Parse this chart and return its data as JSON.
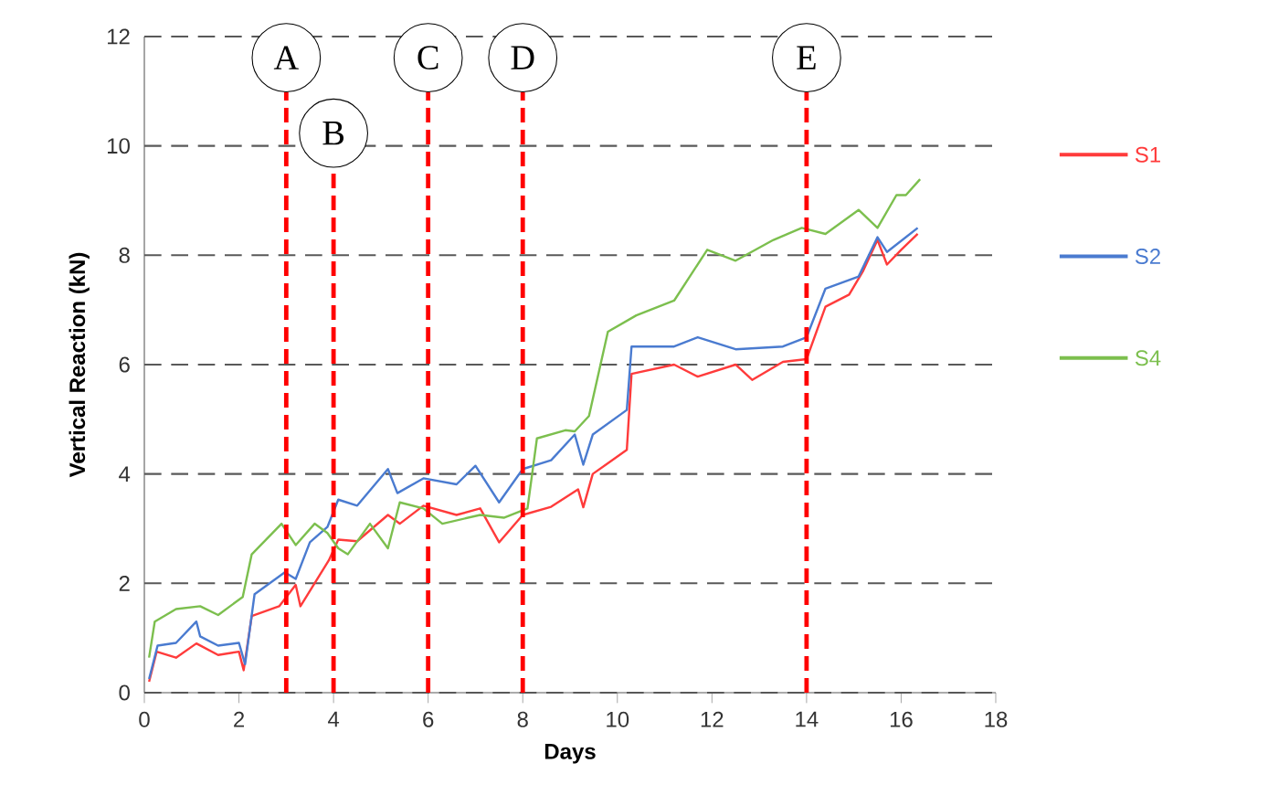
{
  "chart_data": {
    "type": "line",
    "xlabel": "Days",
    "ylabel": "Vertical Reaction (kN)",
    "xlim": [
      0,
      18
    ],
    "xticks": [
      0,
      2,
      4,
      6,
      8,
      10,
      12,
      14,
      16,
      18
    ],
    "ylim": [
      0,
      12
    ],
    "yticks": [
      0,
      2,
      4,
      6,
      8,
      10,
      12
    ],
    "grid": "y",
    "legend": "right",
    "marker": "none",
    "line_style": "solid",
    "series": [
      {
        "name": "S1",
        "color": "#ff3b3b",
        "x": [
          0.1,
          0.26,
          0.67,
          1.1,
          1.56,
          2.0,
          2.1,
          2.27,
          2.85,
          3.2,
          3.3,
          3.9,
          4.1,
          4.5,
          5.15,
          5.4,
          5.9,
          6.6,
          7.1,
          7.5,
          8.0,
          8.6,
          9.17,
          9.28,
          9.48,
          10.2,
          10.3,
          11.2,
          11.7,
          12.5,
          12.85,
          13.5,
          14.0,
          14.4,
          14.9,
          15.2,
          15.5,
          15.7,
          16.0,
          16.35
        ],
        "values": [
          0.2,
          0.75,
          0.64,
          0.9,
          0.69,
          0.75,
          0.41,
          1.4,
          1.58,
          1.97,
          1.58,
          2.42,
          2.8,
          2.77,
          3.25,
          3.09,
          3.42,
          3.25,
          3.37,
          2.75,
          3.25,
          3.4,
          3.72,
          3.39,
          4.0,
          4.44,
          5.83,
          6.0,
          5.78,
          6.0,
          5.72,
          6.05,
          6.1,
          7.06,
          7.28,
          7.72,
          8.28,
          7.83,
          8.1,
          8.39
        ]
      },
      {
        "name": "S2",
        "color": "#4a7bd0",
        "x": [
          0.1,
          0.28,
          0.67,
          1.1,
          1.18,
          1.56,
          2.0,
          2.13,
          2.33,
          2.97,
          3.2,
          3.5,
          3.87,
          4.1,
          4.5,
          5.15,
          5.35,
          5.9,
          6.6,
          7.0,
          7.5,
          8.0,
          8.6,
          9.1,
          9.28,
          9.48,
          10.2,
          10.3,
          11.2,
          11.7,
          12.5,
          13.5,
          14.0,
          14.4,
          15.1,
          15.5,
          15.7,
          16.35
        ],
        "values": [
          0.25,
          0.86,
          0.91,
          1.3,
          1.03,
          0.86,
          0.91,
          0.52,
          1.8,
          2.2,
          2.08,
          2.75,
          3.03,
          3.53,
          3.42,
          4.09,
          3.65,
          3.92,
          3.81,
          4.15,
          3.48,
          4.09,
          4.25,
          4.72,
          4.17,
          4.72,
          5.17,
          6.33,
          6.33,
          6.5,
          6.28,
          6.33,
          6.5,
          7.39,
          7.61,
          8.33,
          8.06,
          8.5
        ]
      },
      {
        "name": "S4",
        "color": "#7cbf4e",
        "x": [
          0.1,
          0.22,
          0.67,
          1.18,
          1.56,
          2.08,
          2.27,
          2.9,
          3.2,
          3.6,
          3.87,
          4.1,
          4.3,
          4.77,
          5.15,
          5.4,
          5.9,
          6.3,
          7.1,
          7.6,
          8.1,
          8.3,
          8.9,
          9.1,
          9.4,
          9.8,
          10.4,
          11.2,
          11.9,
          12.5,
          13.3,
          13.9,
          14.4,
          15.1,
          15.5,
          15.9,
          16.1,
          16.4
        ],
        "values": [
          0.64,
          1.3,
          1.53,
          1.58,
          1.42,
          1.75,
          2.53,
          3.09,
          2.7,
          3.09,
          2.92,
          2.64,
          2.53,
          3.09,
          2.64,
          3.48,
          3.37,
          3.09,
          3.25,
          3.2,
          3.37,
          4.65,
          4.8,
          4.78,
          5.06,
          6.6,
          6.9,
          7.17,
          8.1,
          7.9,
          8.28,
          8.5,
          8.39,
          8.83,
          8.5,
          9.1,
          9.1,
          9.39
        ]
      }
    ],
    "ref_lines": [
      {
        "axis": "x",
        "value": 3,
        "label": "A",
        "color": "#ff0000",
        "line_style": "dashed"
      },
      {
        "axis": "x",
        "value": 4,
        "label": "B",
        "color": "#ff0000",
        "line_style": "dashed"
      },
      {
        "axis": "x",
        "value": 6,
        "label": "C",
        "color": "#ff0000",
        "line_style": "dashed"
      },
      {
        "axis": "x",
        "value": 8,
        "label": "D",
        "color": "#ff0000",
        "line_style": "dashed"
      },
      {
        "axis": "x",
        "value": 14,
        "label": "E",
        "color": "#ff0000",
        "line_style": "dashed"
      }
    ]
  }
}
